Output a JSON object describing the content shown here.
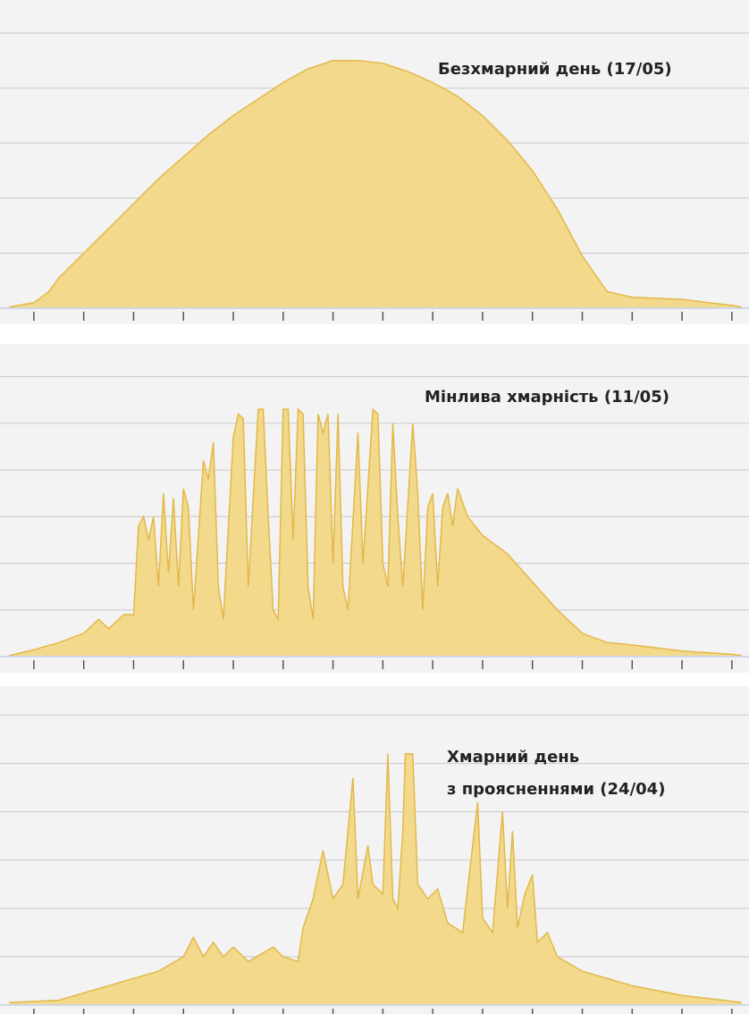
{
  "chart_data": [
    {
      "type": "area",
      "title_lines": [
        "Безхмарний день (17/05)"
      ],
      "color": "#f2d98c",
      "line_color": "#e3b848",
      "grid": true,
      "x": [
        -0.5,
        0,
        0.3,
        0.5,
        1,
        1.5,
        2,
        2.5,
        3,
        3.5,
        4,
        4.5,
        5,
        5.5,
        6,
        6.5,
        7,
        7.5,
        8,
        8.5,
        9,
        9.5,
        10,
        10.5,
        11,
        11.5,
        12,
        13,
        14,
        14.2
      ],
      "values": [
        0.02,
        0.1,
        0.3,
        0.55,
        1.0,
        1.45,
        1.9,
        2.35,
        2.75,
        3.15,
        3.5,
        3.8,
        4.1,
        4.35,
        4.5,
        4.5,
        4.45,
        4.3,
        4.1,
        3.85,
        3.5,
        3.05,
        2.5,
        1.8,
        0.95,
        0.3,
        0.2,
        0.16,
        0.05,
        0.02
      ],
      "xlim": [
        -0.5,
        14.2
      ],
      "xticks": [
        0,
        1,
        2,
        3,
        4,
        5,
        6,
        7,
        8,
        9,
        10,
        11,
        12,
        13,
        14
      ],
      "ylim": [
        0,
        5.6
      ],
      "yticks": [
        1,
        2,
        3,
        4,
        5
      ]
    },
    {
      "type": "area",
      "title_lines": [
        "Мінлива хмарність (11/05)"
      ],
      "color": "#f2d98c",
      "line_color": "#e3b848",
      "grid": true,
      "x": [
        -0.5,
        0,
        0.5,
        1,
        1.3,
        1.5,
        1.8,
        2,
        2.1,
        2.2,
        2.3,
        2.4,
        2.5,
        2.6,
        2.7,
        2.8,
        2.9,
        3.0,
        3.1,
        3.2,
        3.4,
        3.5,
        3.6,
        3.7,
        3.8,
        4.0,
        4.1,
        4.2,
        4.3,
        4.5,
        4.6,
        4.7,
        4.8,
        4.9,
        5.0,
        5.1,
        5.2,
        5.3,
        5.4,
        5.5,
        5.6,
        5.7,
        5.8,
        5.9,
        6.0,
        6.1,
        6.2,
        6.3,
        6.5,
        6.6,
        6.8,
        6.9,
        7.0,
        7.1,
        7.2,
        7.3,
        7.4,
        7.6,
        7.7,
        7.8,
        7.9,
        8.0,
        8.1,
        8.2,
        8.3,
        8.4,
        8.5,
        8.7,
        9,
        9.5,
        10,
        10.5,
        11,
        11.5,
        12,
        13,
        14,
        14.2
      ],
      "values": [
        0.02,
        0.15,
        0.3,
        0.5,
        0.8,
        0.6,
        0.9,
        0.9,
        2.8,
        3.0,
        2.5,
        3.0,
        1.5,
        3.5,
        1.8,
        3.4,
        1.5,
        3.6,
        3.2,
        1.0,
        4.2,
        3.8,
        4.6,
        1.5,
        0.8,
        4.7,
        5.2,
        5.1,
        1.5,
        5.3,
        5.3,
        3.0,
        1.0,
        0.8,
        5.3,
        5.3,
        2.5,
        5.3,
        5.2,
        1.5,
        0.8,
        5.2,
        4.8,
        5.2,
        2.0,
        5.2,
        1.5,
        1.0,
        4.8,
        2.0,
        5.3,
        5.2,
        2.0,
        1.5,
        5.0,
        3.0,
        1.5,
        5.0,
        3.5,
        1.0,
        3.2,
        3.5,
        1.5,
        3.2,
        3.5,
        2.8,
        3.6,
        3.0,
        2.6,
        2.2,
        1.6,
        1.0,
        0.5,
        0.3,
        0.25,
        0.12,
        0.05,
        0.02
      ],
      "xlim": [
        -0.5,
        14.2
      ],
      "xticks": [
        0,
        1,
        2,
        3,
        4,
        5,
        6,
        7,
        8,
        9,
        10,
        11,
        12,
        13,
        14
      ],
      "ylim": [
        0,
        6.7
      ],
      "yticks": [
        1,
        2,
        3,
        4,
        5,
        6
      ]
    },
    {
      "type": "area",
      "title_lines": [
        "Хмарний день",
        "з проясненнями (24/04)"
      ],
      "color": "#f2d98c",
      "line_color": "#e3b848",
      "grid": true,
      "x": [
        -0.5,
        0.5,
        1.5,
        2.5,
        3,
        3.2,
        3.4,
        3.6,
        3.8,
        4,
        4.3,
        4.8,
        5.0,
        5.3,
        5.4,
        5.6,
        5.8,
        6.0,
        6.2,
        6.4,
        6.5,
        6.7,
        6.8,
        7.0,
        7.1,
        7.2,
        7.3,
        7.4,
        7.45,
        7.6,
        7.7,
        7.9,
        8.1,
        8.3,
        8.6,
        8.9,
        9.0,
        9.2,
        9.4,
        9.5,
        9.6,
        9.7,
        9.85,
        10.0,
        10.1,
        10.3,
        10.5,
        11,
        12,
        13,
        14,
        14.2
      ],
      "values": [
        0.05,
        0.1,
        0.4,
        0.7,
        1.0,
        1.4,
        1.0,
        1.3,
        1.0,
        1.2,
        0.9,
        1.2,
        1.0,
        0.9,
        1.6,
        2.2,
        3.2,
        2.2,
        2.5,
        4.7,
        2.2,
        3.3,
        2.5,
        2.3,
        5.2,
        2.2,
        2.0,
        3.6,
        5.2,
        5.2,
        2.5,
        2.2,
        2.4,
        1.7,
        1.5,
        4.2,
        1.8,
        1.5,
        4.0,
        2.0,
        3.6,
        1.6,
        2.3,
        2.7,
        1.3,
        1.5,
        1.0,
        0.7,
        0.4,
        0.2,
        0.08,
        0.05
      ],
      "xlim": [
        -0.5,
        14.2
      ],
      "xticks": [
        0,
        1,
        2,
        3,
        4,
        5,
        6,
        7,
        8,
        9,
        10,
        11,
        12,
        13,
        14
      ],
      "ylim": [
        0,
        6.6
      ],
      "yticks": [
        1,
        2,
        3,
        4,
        5,
        6
      ]
    }
  ]
}
